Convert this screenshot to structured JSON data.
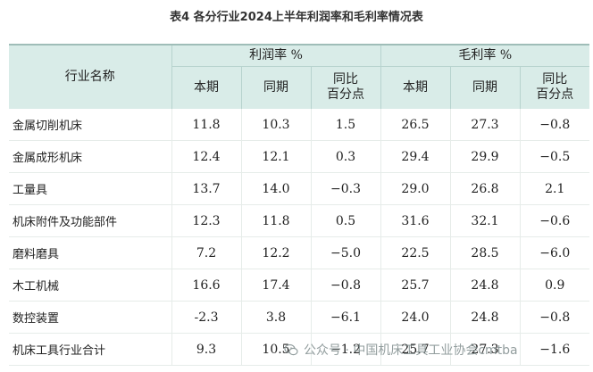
{
  "title": "表4 各分行业2024上半年利润率和毛利率情况表",
  "header": {
    "industry": "行业名称",
    "profit_group": "利润率 %",
    "gross_group": "毛利率 %",
    "current": "本期",
    "prior": "同期",
    "yoy_line1": "同比",
    "yoy_line2": "百分点"
  },
  "rows": [
    {
      "name": "金属切削机床",
      "p_cur": "11.8",
      "p_pri": "10.3",
      "p_yoy": "1.5",
      "g_cur": "26.5",
      "g_pri": "27.3",
      "g_yoy": "−0.8"
    },
    {
      "name": "金属成形机床",
      "p_cur": "12.4",
      "p_pri": "12.1",
      "p_yoy": "0.3",
      "g_cur": "29.4",
      "g_pri": "29.9",
      "g_yoy": "−0.5"
    },
    {
      "name": "工量具",
      "p_cur": "13.7",
      "p_pri": "14.0",
      "p_yoy": "−0.3",
      "g_cur": "29.0",
      "g_pri": "26.8",
      "g_yoy": "2.1"
    },
    {
      "name": "机床附件及功能部件",
      "p_cur": "12.3",
      "p_pri": "11.8",
      "p_yoy": "0.5",
      "g_cur": "31.6",
      "g_pri": "32.1",
      "g_yoy": "−0.6"
    },
    {
      "name": "磨料磨具",
      "p_cur": "7.2",
      "p_pri": "12.2",
      "p_yoy": "−5.0",
      "g_cur": "22.5",
      "g_pri": "28.5",
      "g_yoy": "−6.0"
    },
    {
      "name": "木工机械",
      "p_cur": "16.6",
      "p_pri": "17.4",
      "p_yoy": "−0.8",
      "g_cur": "25.7",
      "g_pri": "24.8",
      "g_yoy": "0.9"
    },
    {
      "name": "数控装置",
      "p_cur": "-2.3",
      "p_pri": "3.8",
      "p_yoy": "−6.1",
      "g_cur": "24.0",
      "g_pri": "24.8",
      "g_yoy": "−0.8"
    },
    {
      "name": "机床工具行业合计",
      "p_cur": "9.3",
      "p_pri": "10.5",
      "p_yoy": "−1.2",
      "g_cur": "25.7",
      "g_pri": "27.3",
      "g_yoy": "−1.6"
    }
  ],
  "watermark": "公众号 · 中国机床工具工业协会cmtba",
  "watermark_icon": "wechat-icon"
}
